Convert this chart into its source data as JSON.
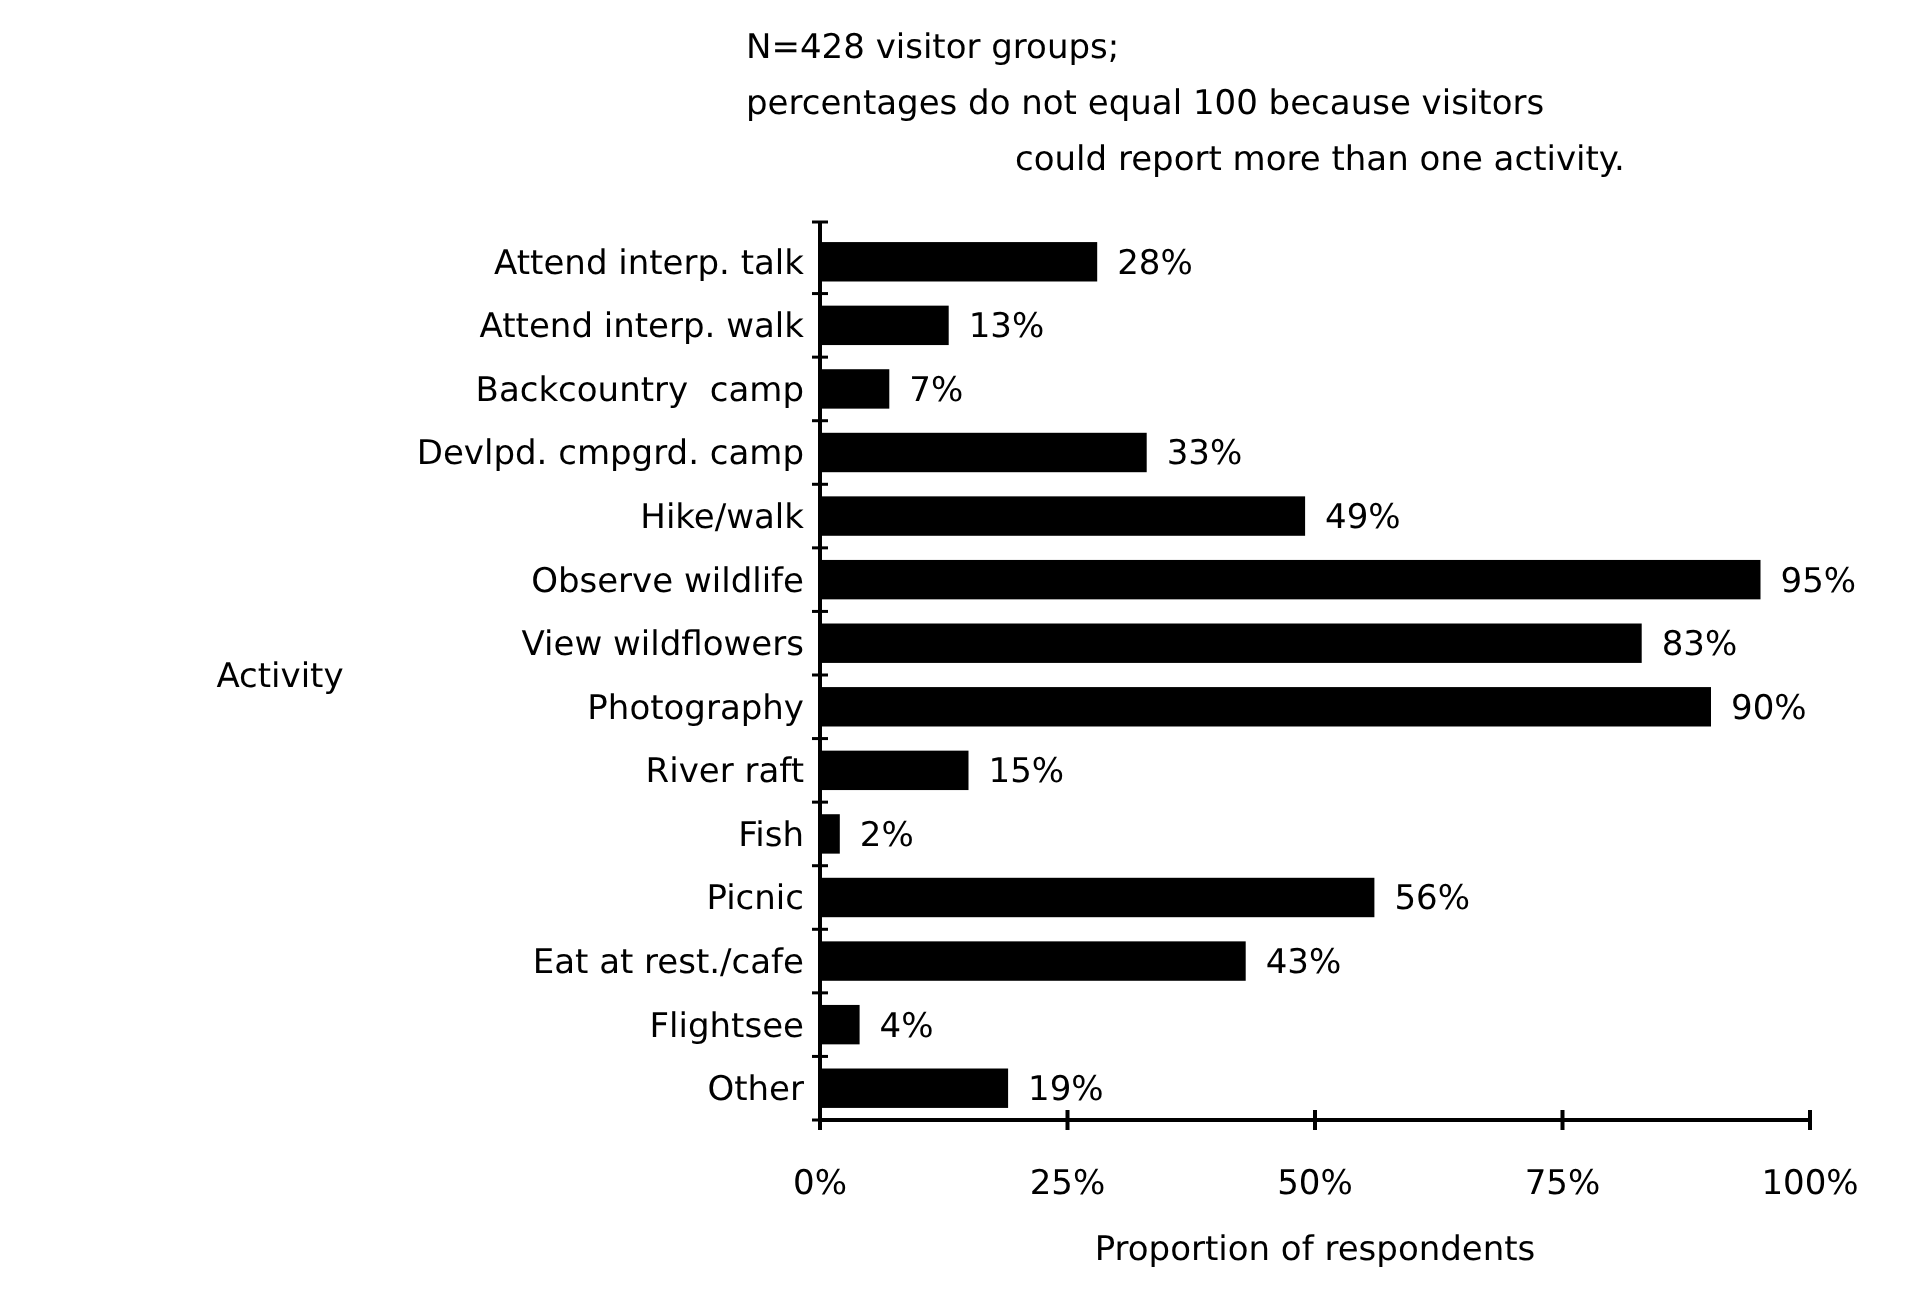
{
  "chart_data": {
    "type": "bar",
    "orientation": "horizontal",
    "ylabel": "Activity",
    "xlabel": "Proportion of respondents",
    "annotations": [
      "N=428 visitor groups;",
      "percentages do not equal 100 because visitors",
      "could report more than one activity."
    ],
    "categories": [
      "Attend interp. talk",
      "Attend interp. walk",
      "Backcountry  camp",
      "Devlpd. cmpgrd. camp",
      "Hike/walk",
      "Observe wildlife",
      "View wildflowers",
      "Photography",
      "River raft",
      "Fish",
      "Picnic",
      "Eat at rest./cafe",
      "Flightsee",
      "Other"
    ],
    "values": [
      28,
      13,
      7,
      33,
      49,
      95,
      83,
      90,
      15,
      2,
      56,
      43,
      4,
      19
    ],
    "value_labels": [
      "28%",
      "13%",
      "7%",
      "33%",
      "49%",
      "95%",
      "83%",
      "90%",
      "15%",
      "2%",
      "56%",
      "43%",
      "4%",
      "19%"
    ],
    "color": "#000000",
    "xlim": [
      0,
      100
    ],
    "xticks": [
      {
        "value": 0,
        "label": "0%"
      },
      {
        "value": 25,
        "label": "25%"
      },
      {
        "value": 50,
        "label": "50%"
      },
      {
        "value": 75,
        "label": "75%"
      },
      {
        "value": 100,
        "label": "100%"
      }
    ],
    "grid": false
  }
}
